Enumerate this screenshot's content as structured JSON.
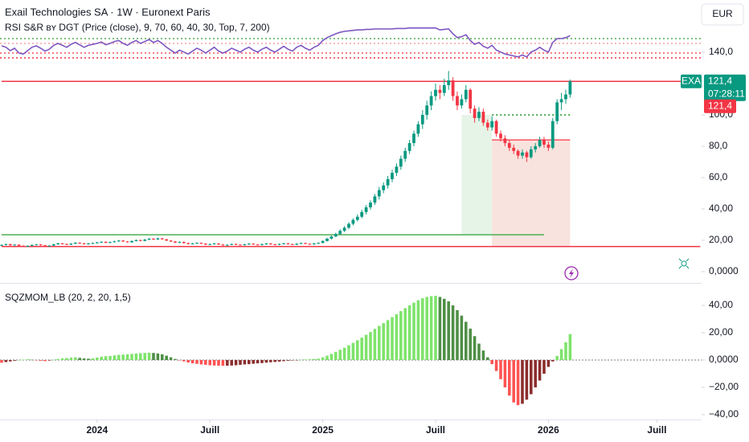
{
  "chart_data": [
    {
      "type": "candlestick",
      "title": "Exail Technologies SA · 1W · Euronext Paris",
      "currency": "EUR",
      "symbol": "EXA",
      "countdown": "07:28:11",
      "up_color": "#089981",
      "down_color": "#f23645",
      "xlim": [
        0,
        161
      ],
      "xticks": [
        {
          "value": 22,
          "label": "2024"
        },
        {
          "value": 48,
          "label": "Juill"
        },
        {
          "value": 74,
          "label": "2025"
        },
        {
          "value": 100,
          "label": "Juill"
        },
        {
          "value": 126,
          "label": "2026"
        },
        {
          "value": 151,
          "label": "Juill"
        }
      ],
      "ylim": [
        -7.2,
        173.3
      ],
      "yticks": [
        {
          "value": 0,
          "label": "0,0000"
        },
        {
          "value": 20,
          "label": "20,00"
        },
        {
          "value": 40,
          "label": "40,00"
        },
        {
          "value": 60,
          "label": "60,0"
        },
        {
          "value": 80,
          "label": "80,0"
        },
        {
          "value": 100,
          "label": "100,0"
        },
        {
          "value": 140,
          "label": "140,0"
        }
      ],
      "last_price": {
        "value": 121.4,
        "label": "121,4"
      },
      "ohlc": [
        [
          16.8,
          17.4,
          16.4,
          17
        ],
        [
          17,
          17.9,
          16.7,
          17.5
        ],
        [
          17.5,
          17.8,
          16.5,
          16.8
        ],
        [
          16.8,
          17.6,
          16.5,
          17.2
        ],
        [
          17.2,
          17.4,
          16.2,
          16.5
        ],
        [
          16.5,
          16.8,
          15.6,
          16
        ],
        [
          16,
          16.8,
          15.7,
          16.4
        ],
        [
          16.4,
          17.3,
          16.1,
          17
        ],
        [
          17,
          17.7,
          16.7,
          17.3
        ],
        [
          17.3,
          17.6,
          16.5,
          16.8
        ],
        [
          16.8,
          17.1,
          15.9,
          16.2
        ],
        [
          16.2,
          17,
          15.9,
          16.6
        ],
        [
          16.6,
          17.8,
          16.3,
          17.4
        ],
        [
          17.4,
          18.4,
          17.1,
          18
        ],
        [
          18,
          18.3,
          17.3,
          17.6
        ],
        [
          17.6,
          17.9,
          16.9,
          17.2
        ],
        [
          17.2,
          18.2,
          16.9,
          17.8
        ],
        [
          17.8,
          18.8,
          17.5,
          18.4
        ],
        [
          18.4,
          18.7,
          17.7,
          18
        ],
        [
          18,
          18.3,
          17.2,
          17.5
        ],
        [
          17.5,
          18.3,
          17.2,
          17.9
        ],
        [
          17.9,
          18.6,
          17.6,
          18.2
        ],
        [
          18.2,
          19,
          17.9,
          18.6
        ],
        [
          18.6,
          19.4,
          18.3,
          19
        ],
        [
          19,
          19.3,
          18.1,
          18.4
        ],
        [
          18.4,
          19.2,
          18.1,
          18.8
        ],
        [
          18.8,
          19.7,
          18.5,
          19.3
        ],
        [
          19.3,
          20.2,
          19,
          19.8
        ],
        [
          19.8,
          20.1,
          18.9,
          19.2
        ],
        [
          19.2,
          19.5,
          18.4,
          18.7
        ],
        [
          18.7,
          19.9,
          18.4,
          19.5
        ],
        [
          19.5,
          20.5,
          19.2,
          20.1
        ],
        [
          20.1,
          20.4,
          19.3,
          19.6
        ],
        [
          19.6,
          20.8,
          19.3,
          20.4
        ],
        [
          20.4,
          21.4,
          20.1,
          21
        ],
        [
          21,
          21.3,
          20.2,
          20.5
        ],
        [
          20.5,
          21.6,
          20.2,
          21.2
        ],
        [
          21.2,
          21.5,
          20.3,
          20.6
        ],
        [
          20.6,
          20.9,
          19.5,
          19.8
        ],
        [
          19.8,
          20.1,
          18.9,
          19.2
        ],
        [
          19.2,
          19.5,
          18.2,
          18.5
        ],
        [
          18.5,
          19.3,
          18.2,
          18.9
        ],
        [
          18.9,
          19.2,
          17.9,
          18.2
        ],
        [
          18.2,
          18.5,
          17.3,
          17.6
        ],
        [
          17.6,
          18.3,
          17.3,
          17.9
        ],
        [
          17.9,
          18.7,
          17.6,
          18.3
        ],
        [
          18.3,
          18.6,
          17.5,
          17.8
        ],
        [
          17.8,
          18.1,
          16.9,
          17.2
        ],
        [
          17.2,
          17.9,
          16.9,
          17.5
        ],
        [
          17.5,
          18.3,
          17.2,
          17.9
        ],
        [
          17.9,
          18.2,
          17,
          17.3
        ],
        [
          17.3,
          17.6,
          16.5,
          16.8
        ],
        [
          16.8,
          17.5,
          16.5,
          17.1
        ],
        [
          17.1,
          18,
          16.8,
          17.6
        ],
        [
          17.6,
          17.9,
          16.9,
          17.2
        ],
        [
          17.2,
          17.5,
          16.6,
          16.9
        ],
        [
          16.9,
          17.8,
          16.6,
          17.4
        ],
        [
          17.4,
          18.2,
          17.1,
          17.8
        ],
        [
          17.8,
          18.1,
          17,
          17.3
        ],
        [
          17.3,
          17.6,
          16.7,
          17
        ],
        [
          17,
          17.9,
          16.7,
          17.5
        ],
        [
          17.5,
          18.3,
          17.2,
          17.9
        ],
        [
          17.9,
          18.2,
          17.1,
          17.4
        ],
        [
          17.4,
          17.7,
          16.8,
          17.1
        ],
        [
          17.1,
          18,
          16.8,
          17.6
        ],
        [
          17.6,
          18.4,
          17.3,
          18
        ],
        [
          18,
          18.3,
          17.2,
          17.5
        ],
        [
          17.5,
          17.8,
          16.9,
          17.2
        ],
        [
          17.2,
          18.2,
          16.9,
          17.8
        ],
        [
          17.8,
          18.6,
          17.5,
          18.2
        ],
        [
          18.2,
          18.5,
          17.4,
          17.7
        ],
        [
          17.7,
          18,
          17.1,
          17.4
        ],
        [
          17.4,
          18.3,
          17.1,
          17.9
        ],
        [
          17.9,
          18.7,
          17.6,
          18.3
        ],
        [
          18.3,
          20,
          18,
          19.5
        ],
        [
          19.5,
          21.6,
          19.2,
          21
        ],
        [
          21,
          23,
          20.5,
          22.4
        ],
        [
          22.4,
          24.8,
          22,
          24
        ],
        [
          24,
          27,
          23.5,
          26
        ],
        [
          26,
          29,
          25.2,
          28
        ],
        [
          28,
          31.5,
          27,
          30.5
        ],
        [
          30.5,
          34,
          29.5,
          33
        ],
        [
          33,
          36.5,
          32,
          35
        ],
        [
          35,
          39.5,
          34,
          38
        ],
        [
          38,
          42.5,
          36.5,
          41
        ],
        [
          41,
          45.5,
          39.5,
          44
        ],
        [
          44,
          49.5,
          42.5,
          48
        ],
        [
          48,
          54,
          46,
          52
        ],
        [
          52,
          57,
          50,
          55
        ],
        [
          55,
          61,
          53,
          59
        ],
        [
          59,
          65,
          57,
          63
        ],
        [
          63,
          69,
          61,
          67
        ],
        [
          67,
          74,
          65,
          72
        ],
        [
          72,
          79,
          70,
          77
        ],
        [
          77,
          84,
          75,
          82
        ],
        [
          82,
          90,
          80,
          88
        ],
        [
          88,
          96,
          86,
          94
        ],
        [
          94,
          103,
          91,
          100
        ],
        [
          100,
          109,
          97,
          106
        ],
        [
          106,
          115,
          103,
          112
        ],
        [
          112,
          120,
          109,
          116
        ],
        [
          116,
          119,
          110,
          114
        ],
        [
          114,
          123,
          112,
          119
        ],
        [
          119,
          128,
          116,
          122
        ],
        [
          122,
          124,
          109,
          112
        ],
        [
          112,
          115,
          103,
          106
        ],
        [
          106,
          113,
          104,
          110
        ],
        [
          110,
          119,
          108,
          116
        ],
        [
          116,
          117,
          101,
          104
        ],
        [
          104,
          106,
          95,
          98
        ],
        [
          98,
          105,
          96,
          102
        ],
        [
          102,
          104,
          93,
          95
        ],
        [
          95,
          97,
          90,
          92
        ],
        [
          92,
          99,
          90,
          96
        ],
        [
          96,
          97,
          86,
          88
        ],
        [
          88,
          90,
          83,
          85
        ],
        [
          85,
          87,
          80,
          82
        ],
        [
          82,
          84,
          77,
          79
        ],
        [
          79,
          81,
          75,
          77
        ],
        [
          77,
          78,
          72,
          74
        ],
        [
          74,
          78,
          72,
          76
        ],
        [
          76,
          77,
          70,
          73
        ],
        [
          73,
          80,
          72,
          78
        ],
        [
          78,
          82,
          76,
          80
        ],
        [
          80,
          86,
          79,
          84
        ],
        [
          84,
          86,
          79,
          81
        ],
        [
          81,
          83,
          77,
          79
        ],
        [
          79,
          98,
          78,
          96
        ],
        [
          96,
          110,
          94,
          108
        ],
        [
          108,
          114,
          103,
          110
        ],
        [
          110,
          116,
          107,
          113
        ],
        [
          113,
          122.5,
          111,
          121.4
        ]
      ],
      "levels": [
        {
          "value": 121.4,
          "label": "121,4",
          "from": 0,
          "to": 161,
          "color": "#f23645",
          "style": "solid"
        },
        {
          "value": 23.5,
          "from": 0,
          "to": 125,
          "color": "#4caf50",
          "style": "solid"
        },
        {
          "value": 16,
          "from": 0,
          "to": 161,
          "color": "#f23645",
          "style": "solid"
        },
        {
          "value": 100,
          "from": 113,
          "to": 131,
          "color": "#4caf50",
          "style": "dotted"
        },
        {
          "value": 84,
          "from": 113,
          "to": 131,
          "color": "#f7525f",
          "style": "solid"
        }
      ],
      "zones": [
        {
          "from": 106,
          "to": 113,
          "top": 100,
          "bottom": 23.5,
          "color": "#e6f4e7"
        },
        {
          "from": 113,
          "to": 131,
          "top": 84,
          "bottom": 16,
          "color": "#f9e3de"
        }
      ],
      "indicator": {
        "name": "RSI S&R ʙʏ DGT (Price (close), 9, 70, 60, 40, 30, Top, 7, 200)",
        "color": "#7e57c2",
        "ylim": [
          0,
          150
        ],
        "levels": [
          {
            "value": 70,
            "color": "#4caf50"
          },
          {
            "value": 60,
            "color": "#f7a1a7"
          },
          {
            "value": 40,
            "color": "#f7525f"
          },
          {
            "value": 30,
            "color": "#f23645"
          }
        ],
        "values": [
          55,
          52,
          45,
          50,
          40,
          38,
          45,
          52,
          55,
          50,
          44,
          48,
          56,
          60,
          56,
          52,
          58,
          62,
          57,
          52,
          56,
          58,
          60,
          63,
          57,
          60,
          64,
          66,
          60,
          56,
          62,
          66,
          60,
          64,
          68,
          62,
          66,
          60,
          52,
          46,
          40,
          46,
          42,
          38,
          44,
          50,
          46,
          40,
          46,
          52,
          44,
          40,
          44,
          50,
          46,
          42,
          48,
          52,
          46,
          42,
          48,
          52,
          46,
          42,
          48,
          54,
          48,
          44,
          52,
          56,
          50,
          46,
          52,
          56,
          66,
          72,
          76,
          80,
          83,
          85,
          86,
          87,
          88,
          88,
          89,
          89,
          90,
          90,
          90,
          90,
          90,
          91,
          91,
          91,
          92,
          92,
          92,
          92,
          92,
          92,
          92,
          88,
          89,
          90,
          80,
          72,
          74,
          78,
          66,
          58,
          62,
          54,
          50,
          56,
          46,
          42,
          38,
          36,
          34,
          32,
          36,
          32,
          42,
          46,
          52,
          46,
          42,
          62,
          70,
          70,
          72,
          76
        ]
      }
    },
    {
      "type": "bar",
      "title": "SQZMOM_LB (20, 2, 20, 1,5)",
      "colors": {
        "up_rising": "#7ee36b",
        "up_falling": "#4e8f45",
        "down_falling": "#ff5252",
        "down_rising": "#8b2d2d"
      },
      "ylim": [
        -43.5,
        54.7
      ],
      "yticks": [
        {
          "value": -40,
          "label": "−40,00"
        },
        {
          "value": -20,
          "label": "−20,00"
        },
        {
          "value": 0,
          "label": "0,0000"
        },
        {
          "value": 20,
          "label": "20,00"
        },
        {
          "value": 40,
          "label": "40,00"
        }
      ],
      "values": [
        -2,
        -1.5,
        -1,
        -0.5,
        0,
        0.3,
        0.5,
        0.2,
        -0.3,
        -0.5,
        -0.8,
        -0.4,
        0.2,
        0.8,
        1.2,
        1.5,
        1.8,
        2,
        1.6,
        1.2,
        1,
        1.3,
        1.8,
        2.4,
        2.8,
        3,
        3.4,
        3.8,
        4,
        4.2,
        4.5,
        4.8,
        5,
        5.2,
        5.4,
        5.2,
        4.8,
        4.2,
        3.2,
        2,
        0.8,
        -0.2,
        -1,
        -1.8,
        -2.4,
        -2.8,
        -3.2,
        -3.5,
        -3.8,
        -4,
        -4.1,
        -4.2,
        -4.1,
        -4,
        -3.8,
        -3.5,
        -3.2,
        -3,
        -2.7,
        -2.4,
        -2.2,
        -1.9,
        -1.6,
        -1.4,
        -1.1,
        -0.8,
        -0.5,
        -0.3,
        -0.1,
        0.2,
        0.4,
        0.6,
        0.8,
        1,
        2,
        3.2,
        4.5,
        6,
        7.5,
        9,
        10.8,
        12.6,
        14.5,
        16.4,
        18.5,
        20.5,
        22.8,
        25,
        27,
        29.2,
        31.4,
        33.6,
        35.8,
        38,
        40,
        42,
        43.8,
        45.2,
        46.2,
        46.8,
        47,
        46.2,
        44.8,
        43,
        40,
        36.5,
        32.5,
        28,
        23,
        17.5,
        12,
        7,
        2,
        -3,
        -8,
        -14,
        -20,
        -26,
        -31,
        -33,
        -32,
        -29,
        -25,
        -20,
        -15,
        -10,
        -5,
        -1,
        3,
        8,
        13,
        19
      ]
    }
  ]
}
